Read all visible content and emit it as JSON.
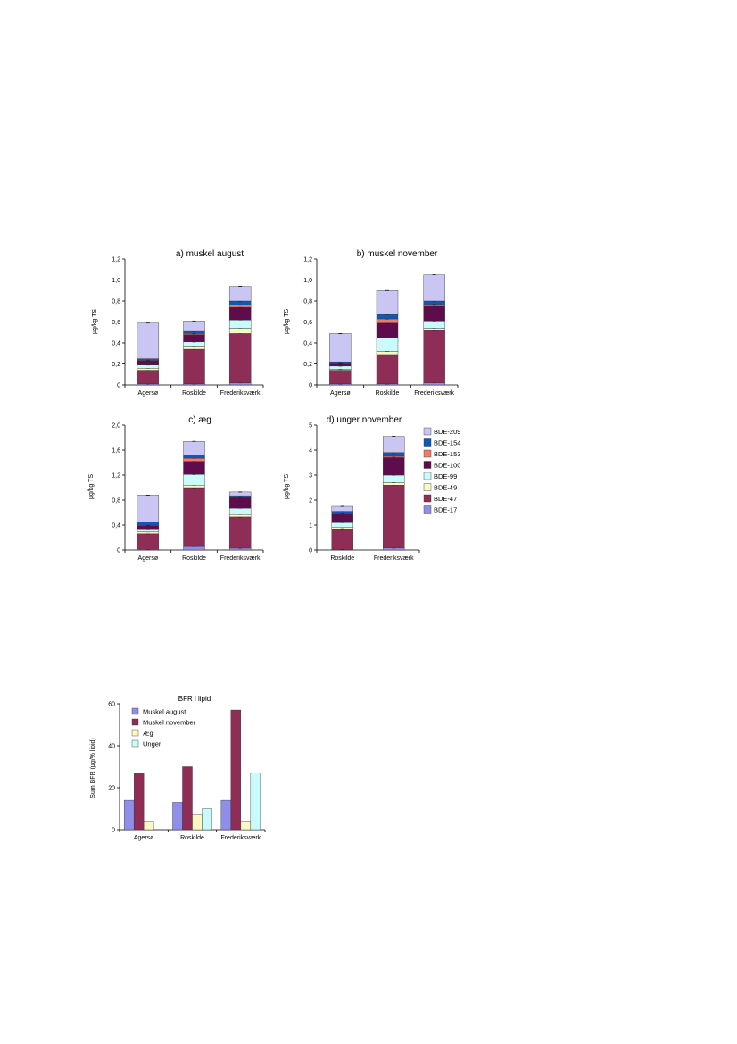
{
  "colors": {
    "BDE-17": "#8f8ee8",
    "BDE-47": "#8e2d55",
    "BDE-49": "#fbf8c3",
    "BDE-99": "#c9fbfb",
    "BDE-100": "#5e0c4c",
    "BDE-153": "#f47a68",
    "BDE-154": "#1158b6",
    "BDE-209": "#c9c6f4",
    "muskel_august": "#8f8ee8",
    "muskel_november": "#8e2d55",
    "aeg": "#fbf8c3",
    "unger": "#c9fbfb"
  },
  "legend": {
    "labels": [
      "BDE-209",
      "BDE-154",
      "BDE-153",
      "BDE-100",
      "BDE-99",
      "BDE-49",
      "BDE-47",
      "BDE-17"
    ]
  },
  "chart_data": [
    {
      "id": "a",
      "type": "bar",
      "stacked": true,
      "title": "a) muskel august",
      "ylabel": "µg/kg TS",
      "ylim": [
        0,
        1.2
      ],
      "yticks": [
        "0",
        "0,2",
        "0,4",
        "0,6",
        "0,8",
        "1,0",
        "1,2"
      ],
      "categories": [
        "Agersø",
        "Roskilde",
        "Frederiksværk"
      ],
      "series": [
        {
          "name": "BDE-17",
          "values": [
            0.01,
            0.01,
            0.02
          ]
        },
        {
          "name": "BDE-47",
          "values": [
            0.13,
            0.33,
            0.47
          ]
        },
        {
          "name": "BDE-49",
          "values": [
            0.02,
            0.03,
            0.05
          ]
        },
        {
          "name": "BDE-99",
          "values": [
            0.03,
            0.04,
            0.08
          ]
        },
        {
          "name": "BDE-100",
          "values": [
            0.04,
            0.07,
            0.12
          ]
        },
        {
          "name": "BDE-153",
          "values": [
            0.005,
            0.01,
            0.02
          ]
        },
        {
          "name": "BDE-154",
          "values": [
            0.015,
            0.02,
            0.04
          ]
        },
        {
          "name": "BDE-209",
          "values": [
            0.34,
            0.1,
            0.14
          ]
        }
      ]
    },
    {
      "id": "b",
      "type": "bar",
      "stacked": true,
      "title": "b) muskel november",
      "ylabel": "µg/kg TS",
      "ylim": [
        0,
        1.2
      ],
      "yticks": [
        "0",
        "0,2",
        "0,4",
        "0,6",
        "0,8",
        "1,0",
        "1,2"
      ],
      "categories": [
        "Agersø",
        "Roskilde",
        "Frederiksværk"
      ],
      "series": [
        {
          "name": "BDE-17",
          "values": [
            0.01,
            0.01,
            0.02
          ]
        },
        {
          "name": "BDE-47",
          "values": [
            0.13,
            0.28,
            0.5
          ]
        },
        {
          "name": "BDE-49",
          "values": [
            0.01,
            0.03,
            0.02
          ]
        },
        {
          "name": "BDE-99",
          "values": [
            0.03,
            0.13,
            0.07
          ]
        },
        {
          "name": "BDE-100",
          "values": [
            0.02,
            0.14,
            0.14
          ]
        },
        {
          "name": "BDE-153",
          "values": [
            0.005,
            0.04,
            0.02
          ]
        },
        {
          "name": "BDE-154",
          "values": [
            0.015,
            0.04,
            0.03
          ]
        },
        {
          "name": "BDE-209",
          "values": [
            0.27,
            0.23,
            0.25
          ]
        }
      ]
    },
    {
      "id": "c",
      "type": "bar",
      "stacked": true,
      "title": "c) æg",
      "ylabel": "µg/kg TS",
      "ylim": [
        0,
        2.0
      ],
      "yticks": [
        "0",
        "0,4",
        "0,8",
        "1,2",
        "1,6",
        "2,0"
      ],
      "categories": [
        "Agersø",
        "Roskilde",
        "Frederiksværk"
      ],
      "series": [
        {
          "name": "BDE-17",
          "values": [
            0.01,
            0.07,
            0.03
          ]
        },
        {
          "name": "BDE-47",
          "values": [
            0.25,
            0.93,
            0.5
          ]
        },
        {
          "name": "BDE-49",
          "values": [
            0.03,
            0.04,
            0.04
          ]
        },
        {
          "name": "BDE-99",
          "values": [
            0.05,
            0.17,
            0.1
          ]
        },
        {
          "name": "BDE-100",
          "values": [
            0.05,
            0.21,
            0.17
          ]
        },
        {
          "name": "BDE-153",
          "values": [
            0.01,
            0.05,
            0.01
          ]
        },
        {
          "name": "BDE-154",
          "values": [
            0.05,
            0.05,
            0.02
          ]
        },
        {
          "name": "BDE-209",
          "values": [
            0.43,
            0.22,
            0.06
          ]
        }
      ]
    },
    {
      "id": "d",
      "type": "bar",
      "stacked": true,
      "title": "d) unger november",
      "ylabel": "µg/kg TS",
      "ylim": [
        0,
        5
      ],
      "yticks": [
        "0",
        "1",
        "2",
        "3",
        "4",
        "5"
      ],
      "categories": [
        "Roskilde",
        "Frederiksværk"
      ],
      "series": [
        {
          "name": "BDE-17",
          "values": [
            0.02,
            0.08
          ]
        },
        {
          "name": "BDE-47",
          "values": [
            0.83,
            2.52
          ]
        },
        {
          "name": "BDE-49",
          "values": [
            0.05,
            0.1
          ]
        },
        {
          "name": "BDE-99",
          "values": [
            0.2,
            0.3
          ]
        },
        {
          "name": "BDE-100",
          "values": [
            0.35,
            0.7
          ]
        },
        {
          "name": "BDE-153",
          "values": [
            0.03,
            0.05
          ]
        },
        {
          "name": "BDE-154",
          "values": [
            0.07,
            0.15
          ]
        },
        {
          "name": "BDE-209",
          "values": [
            0.2,
            0.65
          ]
        }
      ]
    },
    {
      "id": "e",
      "type": "bar",
      "stacked": false,
      "title": "BFR i lipid",
      "ylabel": "Sum BFR (µg/% lipid)",
      "ylim": [
        0,
        60
      ],
      "yticks": [
        "0",
        "20",
        "40",
        "60"
      ],
      "categories": [
        "Agersø",
        "Roskilde",
        "Frederiksværk"
      ],
      "series": [
        {
          "name": "Muskel august",
          "values": [
            14,
            13,
            14
          ]
        },
        {
          "name": "Muskel november",
          "values": [
            27,
            30,
            57
          ]
        },
        {
          "name": "Æg",
          "values": [
            4,
            7,
            4
          ]
        },
        {
          "name": "Unger",
          "values": [
            null,
            10,
            27
          ]
        }
      ]
    }
  ]
}
